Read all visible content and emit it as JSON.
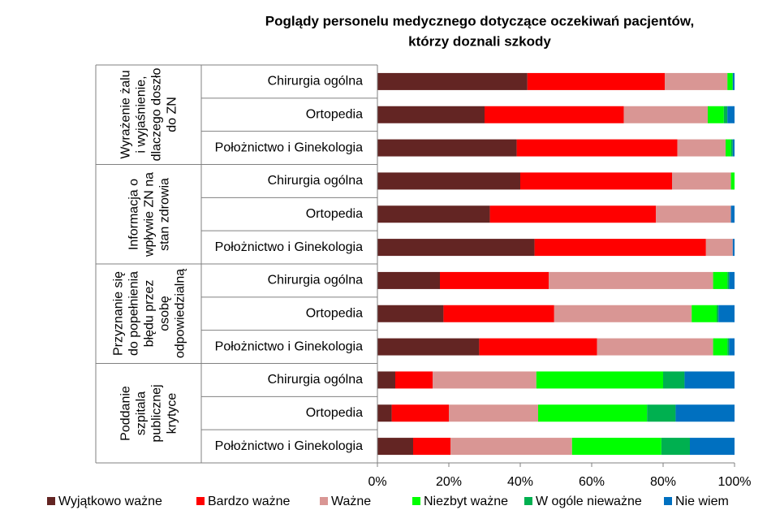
{
  "chart_data": {
    "type": "stacked-bar-horizontal",
    "title": [
      "Poglądy personelu medycznego dotyczące oczekiwań pacjentów,",
      "którzy doznali szkody"
    ],
    "groups": [
      {
        "label": "Wyrażenie żalu i wyjaśnienie, dlaczego doszło do ZN",
        "categories": [
          "Chirurgia ogólna",
          "Ortopedia",
          "Położnictwo i Ginekologia"
        ]
      },
      {
        "label": "Informacja o wpływie ZN na stan zdrowia",
        "categories": [
          "Chirurgia ogólna",
          "Ortopedia",
          "Położnictwo i Ginekologia"
        ]
      },
      {
        "label": "Przyznanie się do popełnienia błędu przez osobę odpowiedzialną",
        "categories": [
          "Chirurgia ogólna",
          "Ortopedia",
          "Położnictwo i Ginekologia"
        ]
      },
      {
        "label": "Poddanie szpitala publicznej krytyce",
        "categories": [
          "Chirurgia ogólna",
          "Ortopedia",
          "Położnictwo i Ginekologia"
        ]
      }
    ],
    "series": [
      {
        "name": "Wyjątkowo ważne",
        "color": "#632523",
        "values": [
          42,
          30,
          39,
          40,
          31.5,
          44,
          17.5,
          18.5,
          28.5,
          5,
          4,
          10
        ]
      },
      {
        "name": "Bardzo ważne",
        "color": "#ff0000",
        "values": [
          38.5,
          39,
          45,
          42.5,
          46.5,
          48,
          30.5,
          31,
          33,
          10.5,
          16,
          10.5
        ]
      },
      {
        "name": "Ważne",
        "color": "#d99694",
        "values": [
          17.5,
          23.5,
          13.5,
          16.5,
          21,
          7.5,
          46,
          38.5,
          32.5,
          29,
          25,
          34
        ]
      },
      {
        "name": "Niezbyt ważne",
        "color": "#00ff00",
        "values": [
          1.5,
          4.5,
          1.5,
          1,
          0,
          0,
          4,
          7,
          4,
          35.5,
          30.5,
          25
        ]
      },
      {
        "name": "W ogóle nieważne",
        "color": "#00b050",
        "values": [
          0,
          1,
          0.5,
          0,
          0,
          0,
          0.5,
          0.5,
          0.5,
          6,
          8,
          8
        ]
      },
      {
        "name": "Nie wiem",
        "color": "#0070c0",
        "values": [
          0.5,
          2,
          0.5,
          0,
          1,
          0.5,
          1.5,
          4.5,
          1.5,
          14,
          16.5,
          12.5
        ]
      }
    ],
    "xlim": [
      0,
      100
    ],
    "xticks": [
      {
        "value": 0,
        "label": "0%"
      },
      {
        "value": 20,
        "label": "20%"
      },
      {
        "value": 40,
        "label": "40%"
      },
      {
        "value": 60,
        "label": "60%"
      },
      {
        "value": 80,
        "label": "80%"
      },
      {
        "value": 100,
        "label": "100%"
      }
    ],
    "legend": "bottom"
  }
}
